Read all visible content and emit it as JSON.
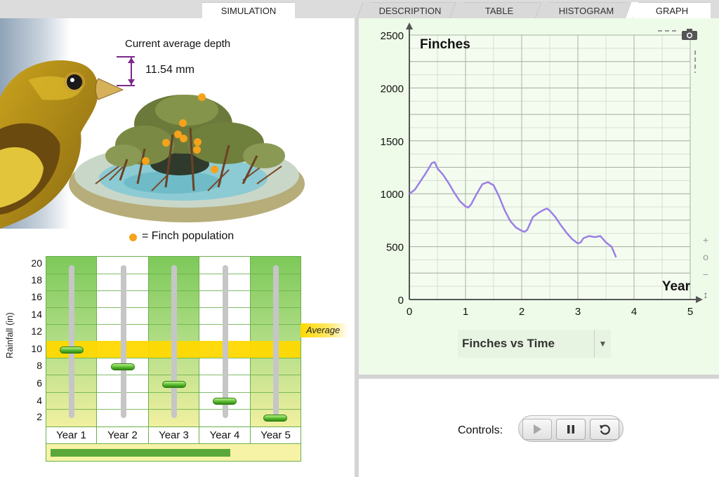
{
  "tabs": {
    "simulation": "SIMULATION",
    "description": "DESCRIPTION",
    "table": "TABLE",
    "histogram": "HISTOGRAM",
    "graph": "GRAPH"
  },
  "simulation": {
    "depth_title": "Current average depth",
    "depth_value": "11.54 mm",
    "legend": "= Finch population",
    "rainfall_axis_label": "Rainfall (in)",
    "rainfall_ticks": [
      "20",
      "18",
      "16",
      "14",
      "12",
      "10",
      "8",
      "6",
      "4",
      "2"
    ],
    "average_label": "Average",
    "years": [
      {
        "label": "Year 1",
        "rainfall": 10
      },
      {
        "label": "Year 2",
        "rainfall": 8
      },
      {
        "label": "Year 3",
        "rainfall": 6
      },
      {
        "label": "Year 4",
        "rainfall": 4
      },
      {
        "label": "Year 5",
        "rainfall": 2
      }
    ],
    "progress_fraction": 0.73
  },
  "graph": {
    "dropdown_value": "Finches vs Time",
    "zoom_in": "+",
    "zoom_reset": "o",
    "zoom_out": "−",
    "zoom_fit": "↕"
  },
  "controls": {
    "label": "Controls:"
  },
  "colors": {
    "finch_dot": "#f6a21b",
    "graph_line": "#9b7fe6",
    "average_band": "#ffd800",
    "grid_green": "#7dc95a"
  },
  "chart_data": {
    "type": "line",
    "title": "Finches",
    "ylabel": "Finches",
    "xlabel": "Year",
    "xlim": [
      0,
      5
    ],
    "ylim": [
      0,
      2500
    ],
    "xticks": [
      "0",
      "1",
      "2",
      "3",
      "4",
      "5"
    ],
    "yticks": [
      "0",
      "500",
      "1000",
      "1500",
      "2000",
      "2500"
    ],
    "grid": true,
    "series": [
      {
        "x": [
          0,
          0.1,
          0.2,
          0.3,
          0.4,
          0.45,
          0.5,
          0.6,
          0.7,
          0.8,
          0.9,
          1.0,
          1.05,
          1.1,
          1.2,
          1.3,
          1.35,
          1.4,
          1.5,
          1.6,
          1.7,
          1.8,
          1.9,
          2.0,
          2.05,
          2.1,
          2.2,
          2.3,
          2.4,
          2.45,
          2.5,
          2.6,
          2.7,
          2.8,
          2.9,
          3.0,
          3.05,
          3.1,
          3.2,
          3.3,
          3.4,
          3.5,
          3.6,
          3.68
        ],
        "y": [
          1000,
          1040,
          1120,
          1200,
          1290,
          1300,
          1240,
          1180,
          1100,
          1010,
          930,
          880,
          870,
          900,
          1000,
          1090,
          1100,
          1110,
          1080,
          970,
          840,
          740,
          680,
          650,
          640,
          660,
          780,
          820,
          850,
          860,
          840,
          780,
          700,
          630,
          570,
          530,
          540,
          580,
          600,
          590,
          600,
          540,
          500,
          400
        ]
      }
    ]
  }
}
